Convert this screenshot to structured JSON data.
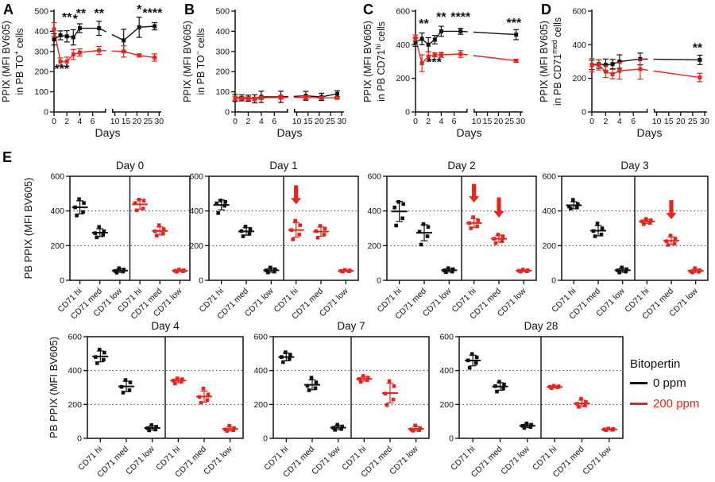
{
  "figure": {
    "colors": {
      "black": "#111111",
      "red": "#e8251c"
    },
    "e_label": "E",
    "legend": {
      "title": "Bitopertin",
      "entries": [
        {
          "label": "0 ppm",
          "color": "black"
        },
        {
          "label": "200 ppm",
          "color": "red"
        }
      ]
    }
  },
  "chart_data": [
    {
      "id": "A",
      "type": "line",
      "panel_label": "A",
      "ylabel1": "PPIX (MFI BV605)",
      "ylabel2": [
        {
          "t": "in PB TO"
        },
        {
          "t": "+",
          "sup": true
        },
        {
          "t": " cells"
        }
      ],
      "xlabel": "Days",
      "ylim": [
        0,
        500
      ],
      "yticks": [
        0,
        100,
        200,
        300,
        400,
        500
      ],
      "xticks_left": [
        0,
        2,
        4,
        6
      ],
      "xticks_right": [
        10,
        15,
        20,
        25,
        30
      ],
      "series": [
        {
          "name": "0 ppm",
          "color": "black",
          "days": [
            0,
            1,
            2,
            3,
            4,
            7,
            14,
            21,
            28
          ],
          "mean": [
            360,
            380,
            375,
            370,
            415,
            415,
            355,
            420,
            425
          ],
          "err": [
            28,
            22,
            28,
            38,
            22,
            35,
            55,
            50,
            18
          ]
        },
        {
          "name": "200 ppm",
          "color": "red",
          "days": [
            0,
            1,
            2,
            3,
            4,
            7,
            14,
            21,
            28
          ],
          "mean": [
            410,
            250,
            250,
            285,
            295,
            305,
            300,
            280,
            270
          ],
          "err": [
            33,
            18,
            22,
            25,
            18,
            20,
            28,
            8,
            18
          ]
        }
      ],
      "annotations": [
        {
          "d": 2,
          "y": 448,
          "t": "**"
        },
        {
          "d": 3.3,
          "y": 440,
          "t": "*"
        },
        {
          "d": 4.2,
          "y": 468,
          "t": "**"
        },
        {
          "d": 7,
          "y": 468,
          "t": "**"
        },
        {
          "d": 21,
          "y": 488,
          "t": "*"
        },
        {
          "d": 27,
          "y": 470,
          "t": "****"
        },
        {
          "d": 1.2,
          "y": 192,
          "t": "***"
        }
      ]
    },
    {
      "id": "B",
      "type": "line",
      "panel_label": "B",
      "ylabel1": "PPIX (MFI BV605)",
      "ylabel2": [
        {
          "t": "in PB TO"
        },
        {
          "t": "−",
          "sup": true
        },
        {
          "t": " cells"
        }
      ],
      "xlabel": "Days",
      "ylim": [
        0,
        500
      ],
      "yticks": [
        0,
        100,
        200,
        300,
        400,
        500
      ],
      "xticks_left": [
        0,
        2,
        4,
        6
      ],
      "xticks_right": [
        10,
        15,
        20,
        25,
        30
      ],
      "series": [
        {
          "name": "0 ppm",
          "color": "black",
          "days": [
            0,
            1,
            2,
            3,
            4,
            7,
            14,
            21,
            28
          ],
          "mean": [
            70,
            70,
            68,
            65,
            75,
            75,
            80,
            75,
            90
          ],
          "err": [
            18,
            15,
            15,
            20,
            28,
            28,
            22,
            18,
            15
          ]
        },
        {
          "name": "200 ppm",
          "color": "red",
          "days": [
            0,
            1,
            2,
            3,
            4,
            7,
            14,
            21,
            28
          ],
          "mean": [
            68,
            67,
            66,
            64,
            70,
            72,
            72,
            70,
            70
          ],
          "err": [
            10,
            8,
            8,
            8,
            8,
            8,
            8,
            6,
            6
          ]
        }
      ],
      "annotations": []
    },
    {
      "id": "C",
      "type": "line",
      "panel_label": "C",
      "ylabel1": "PPIX (MFI BV605)",
      "ylabel2": [
        {
          "t": "in PB CD71"
        },
        {
          "t": "hi",
          "sup": true
        },
        {
          "t": " cells"
        }
      ],
      "xlabel": "Days",
      "ylim": [
        0,
        600
      ],
      "yticks": [
        0,
        200,
        400,
        600
      ],
      "xticks_left": [
        0,
        2,
        4,
        6
      ],
      "xticks_right": [
        10,
        15,
        20,
        25,
        30
      ],
      "series": [
        {
          "name": "0 ppm",
          "color": "black",
          "days": [
            0,
            1,
            2,
            3,
            4,
            7,
            28
          ],
          "mean": [
            415,
            435,
            400,
            430,
            480,
            480,
            460
          ],
          "err": [
            25,
            35,
            42,
            25,
            30,
            18,
            30
          ]
        },
        {
          "name": "200 ppm",
          "color": "red",
          "days": [
            0,
            1,
            2,
            3,
            4,
            7,
            28
          ],
          "mean": [
            440,
            290,
            330,
            340,
            340,
            345,
            305
          ],
          "err": [
            18,
            50,
            28,
            12,
            15,
            20,
            8
          ]
        }
      ],
      "annotations": [
        {
          "d": 1.3,
          "y": 500,
          "t": "**"
        },
        {
          "d": 4,
          "y": 540,
          "t": "**"
        },
        {
          "d": 7,
          "y": 540,
          "t": "****"
        },
        {
          "d": 27,
          "y": 505,
          "t": "***"
        },
        {
          "d": 2.9,
          "y": 272,
          "t": "***"
        }
      ]
    },
    {
      "id": "D",
      "type": "line",
      "panel_label": "D",
      "ylabel1": "PPIX (MFI BV605)",
      "ylabel2": [
        {
          "t": "in PB CD71"
        },
        {
          "t": "med",
          "sup": true
        },
        {
          "t": " cells"
        }
      ],
      "xlabel": "Days",
      "ylim": [
        0,
        600
      ],
      "yticks": [
        0,
        200,
        400,
        600
      ],
      "xticks_left": [
        0,
        2,
        4,
        6
      ],
      "xticks_right": [
        10,
        15,
        20,
        25,
        30
      ],
      "series": [
        {
          "name": "0 ppm",
          "color": "black",
          "days": [
            0,
            1,
            2,
            3,
            4,
            7,
            28
          ],
          "mean": [
            280,
            285,
            280,
            285,
            300,
            315,
            310
          ],
          "err": [
            28,
            25,
            35,
            28,
            40,
            35,
            28
          ]
        },
        {
          "name": "200 ppm",
          "color": "red",
          "days": [
            0,
            1,
            2,
            3,
            4,
            7,
            28
          ],
          "mean": [
            278,
            280,
            240,
            225,
            245,
            255,
            205
          ],
          "err": [
            40,
            30,
            35,
            28,
            50,
            60,
            25
          ]
        }
      ],
      "annotations": [
        {
          "d": 27,
          "y": 356,
          "t": "**"
        }
      ]
    },
    {
      "id": "E0",
      "type": "scatter",
      "title": "Day 0",
      "ylabel": "PB PPIX (MFI BV605)",
      "ylim": [
        0,
        600
      ],
      "yticks": [
        0,
        200,
        400,
        600
      ],
      "grid": [
        200,
        400
      ],
      "categories": [
        "CD71 hi",
        "CD71 med",
        "CD71 low"
      ],
      "groups": [
        {
          "name": "0 ppm",
          "color": "black",
          "values": [
            [
              468,
              446,
              421,
              394,
              374
            ],
            [
              308,
              283,
              272,
              262,
              248
            ],
            [
              70,
              62,
              54,
              50,
              44
            ]
          ]
        },
        {
          "name": "200 ppm",
          "color": "red",
          "values": [
            [
              466,
              459,
              446,
              414,
              404
            ],
            [
              318,
              295,
              283,
              269,
              258
            ],
            [
              62,
              58,
              55,
              52,
              49
            ]
          ]
        }
      ],
      "arrows": []
    },
    {
      "id": "E1",
      "type": "scatter",
      "title": "Day 1",
      "ylim": [
        0,
        600
      ],
      "yticks": [
        0,
        200,
        400,
        600
      ],
      "grid": [
        200,
        400
      ],
      "categories": [
        "CD71 hi",
        "CD71 med",
        "CD71 low"
      ],
      "groups": [
        {
          "name": "0 ppm",
          "color": "black",
          "values": [
            [
              460,
              452,
              444,
              430,
              388
            ],
            [
              310,
              296,
              284,
              268,
              254
            ],
            [
              74,
              64,
              57,
              50,
              45
            ]
          ]
        },
        {
          "name": "200 ppm",
          "color": "red",
          "values": [
            [
              344,
              318,
              290,
              264,
              236
            ],
            [
              314,
              298,
              284,
              264,
              246
            ],
            [
              60,
              57,
              54,
              52,
              50
            ]
          ]
        }
      ],
      "arrows": [
        {
          "g": 1,
          "c": 0,
          "from": 548,
          "to": 438
        }
      ]
    },
    {
      "id": "E2",
      "type": "scatter",
      "title": "Day 2",
      "ylim": [
        0,
        600
      ],
      "yticks": [
        0,
        200,
        400,
        600
      ],
      "grid": [
        200,
        400
      ],
      "categories": [
        "CD71 hi",
        "CD71 med",
        "CD71 low"
      ],
      "groups": [
        {
          "name": "0 ppm",
          "color": "black",
          "values": [
            [
              452,
              440,
              420,
              358,
              316
            ],
            [
              324,
              308,
              280,
              254,
              206
            ],
            [
              70,
              64,
              57,
              50,
              47
            ]
          ]
        },
        {
          "name": "200 ppm",
          "color": "red",
          "values": [
            [
              364,
              346,
              330,
              312,
              300
            ],
            [
              264,
              254,
              240,
              226,
              214
            ],
            [
              62,
              58,
              55,
              52,
              50
            ]
          ]
        }
      ],
      "arrows": [
        {
          "g": 1,
          "c": 0,
          "from": 556,
          "to": 448
        },
        {
          "g": 1,
          "c": 1,
          "from": 478,
          "to": 362
        }
      ]
    },
    {
      "id": "E3",
      "type": "scatter",
      "title": "Day 3",
      "ylim": [
        0,
        600
      ],
      "yticks": [
        0,
        200,
        400,
        600
      ],
      "grid": [
        200,
        400
      ],
      "categories": [
        "CD71 hi",
        "CD71 med",
        "CD71 low"
      ],
      "groups": [
        {
          "name": "0 ppm",
          "color": "black",
          "values": [
            [
              464,
              440,
              426,
              420,
              414
            ],
            [
              328,
              300,
              284,
              264,
              254
            ],
            [
              74,
              64,
              57,
              50,
              45
            ]
          ]
        },
        {
          "name": "200 ppm",
          "color": "red",
          "values": [
            [
              354,
              346,
              340,
              331,
              324
            ],
            [
              258,
              240,
              226,
              211,
              204
            ],
            [
              70,
              58,
              52,
              49,
              45
            ]
          ]
        }
      ],
      "arrows": [
        {
          "g": 1,
          "c": 1,
          "from": 462,
          "to": 352
        }
      ]
    },
    {
      "id": "E4",
      "type": "scatter",
      "title": "Day 4",
      "ylabel": "PB PPIX (MFI BV605)",
      "ylim": [
        0,
        600
      ],
      "yticks": [
        0,
        200,
        400,
        600
      ],
      "grid": [
        200,
        400
      ],
      "categories": [
        "CD71 hi",
        "CD71 med",
        "CD71 low"
      ],
      "groups": [
        {
          "name": "0 ppm",
          "color": "black",
          "values": [
            [
              524,
              506,
              480,
              464,
              444
            ],
            [
              344,
              330,
              304,
              284,
              270
            ],
            [
              78,
              68,
              60,
              52,
              47
            ]
          ]
        },
        {
          "name": "200 ppm",
          "color": "red",
          "values": [
            [
              354,
              349,
              341,
              334,
              324
            ],
            [
              294,
              259,
              244,
              226,
              210
            ],
            [
              74,
              60,
              52,
              48,
              44
            ]
          ]
        }
      ],
      "arrows": []
    },
    {
      "id": "E7",
      "type": "scatter",
      "title": "Day 7",
      "ylim": [
        0,
        600
      ],
      "yticks": [
        0,
        200,
        400,
        600
      ],
      "grid": [
        200,
        400
      ],
      "categories": [
        "CD71 hi",
        "CD71 med",
        "CD71 low"
      ],
      "groups": [
        {
          "name": "0 ppm",
          "color": "black",
          "values": [
            [
              508,
              494,
              480,
              468,
              450
            ],
            [
              358,
              330,
              310,
              296,
              284
            ],
            [
              80,
              70,
              62,
              55,
              50
            ]
          ]
        },
        {
          "name": "200 ppm",
          "color": "red",
          "values": [
            [
              368,
              358,
              350,
              344,
              334
            ],
            [
              338,
              308,
              264,
              229,
              196
            ],
            [
              76,
              60,
              52,
              48,
              45
            ]
          ]
        }
      ],
      "arrows": []
    },
    {
      "id": "E28",
      "type": "scatter",
      "title": "Day 28",
      "ylim": [
        0,
        600
      ],
      "yticks": [
        0,
        200,
        400,
        600
      ],
      "grid": [
        200,
        400
      ],
      "categories": [
        "CD71 hi",
        "CD71 med",
        "CD71 low"
      ],
      "groups": [
        {
          "name": "0 ppm",
          "color": "black",
          "values": [
            [
              498,
              478,
              460,
              444,
              416
            ],
            [
              334,
              318,
              308,
              294,
              276
            ],
            [
              88,
              80,
              74,
              67,
              61
            ]
          ]
        },
        {
          "name": "200 ppm",
          "color": "red",
          "values": [
            [
              310,
              307,
              304,
              301,
              296
            ],
            [
              234,
              214,
              204,
              194,
              186
            ],
            [
              58,
              55,
              53,
              50,
              48
            ]
          ]
        }
      ],
      "arrows": []
    }
  ]
}
